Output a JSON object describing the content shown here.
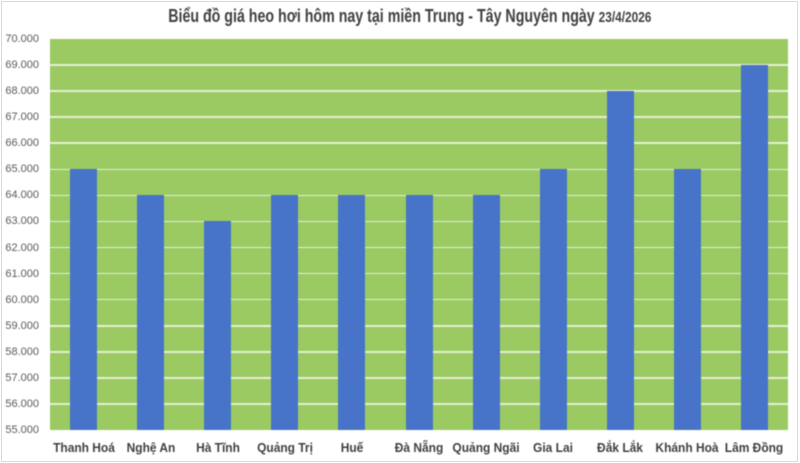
{
  "page": {
    "background_color": "#ffffff",
    "frame_border_color": "#d9d9d9"
  },
  "chart_data": {
    "type": "bar",
    "title": "Biểu đồ giá heo hơi hôm nay tại miền Trung - Tây Nguyên ngày 23/4/2026",
    "title_main": "Biểu đồ giá heo hơi hôm nay tại miền Trung - Tây Nguyên ngày ",
    "title_date": "23/4/2026",
    "categories": [
      "Thanh Hoá",
      "Nghệ An",
      "Hà Tĩnh",
      "Quảng Trị",
      "Huế",
      "Đà Nẵng",
      "Quảng Ngãi",
      "Gia Lai",
      "Đắk Lắk",
      "Khánh Hoà",
      "Lâm Đồng"
    ],
    "values": [
      65000,
      64000,
      63000,
      64000,
      64000,
      64000,
      64000,
      65000,
      68000,
      65000,
      69000
    ],
    "xlabel": "",
    "ylabel": "",
    "ylim": [
      55000,
      70000
    ],
    "ytick_step": 1000,
    "ytick_labels": [
      "55.000",
      "56.000",
      "57.000",
      "58.000",
      "59.000",
      "60.000",
      "61.000",
      "62.000",
      "63.000",
      "64.000",
      "65.000",
      "66.000",
      "67.000",
      "68.000",
      "69.000",
      "70.000"
    ],
    "grid": "horizontal",
    "legend": "none",
    "colors": {
      "bar_fill": "#4774c8",
      "plot_background": "#9bca62",
      "gridline": "#ffffff",
      "title_text": "#404040",
      "ytick_text": "#595959",
      "category_text": "#3f3f3f"
    }
  }
}
